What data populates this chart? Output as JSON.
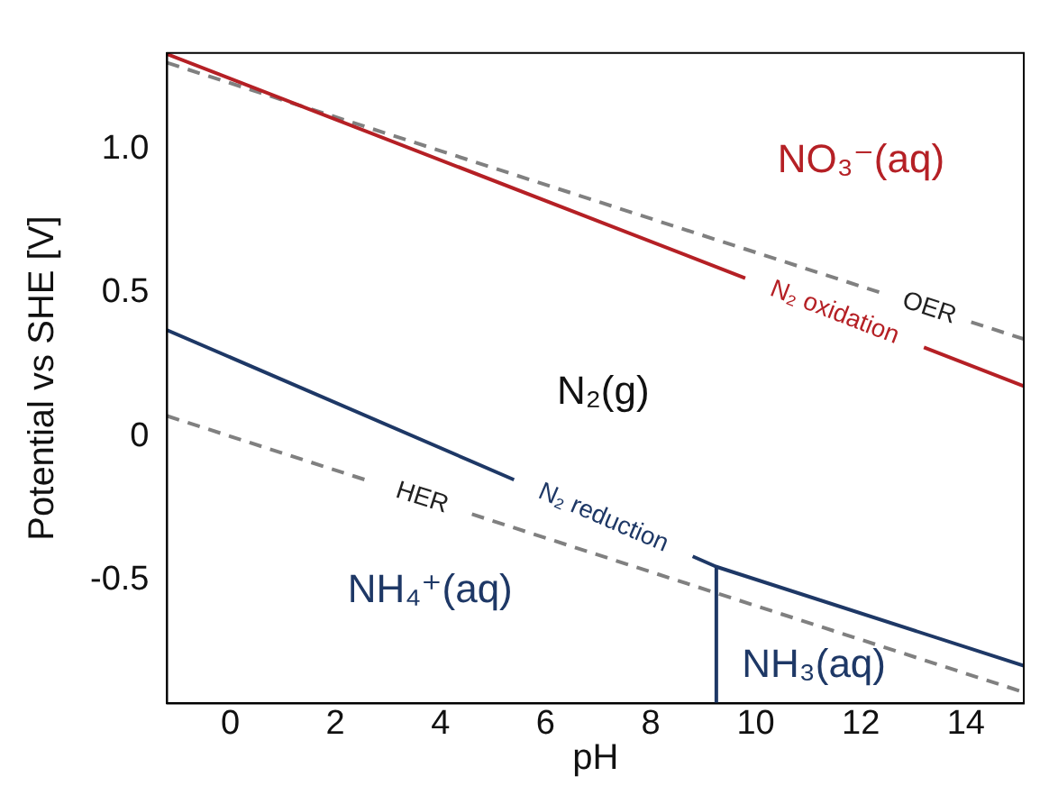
{
  "chart_data": {
    "type": "line",
    "xlabel": "pH",
    "ylabel": "Potential vs SHE [V]",
    "xlim": [
      -1.2,
      15.1
    ],
    "xticks": [
      0,
      2,
      4,
      6,
      8,
      10,
      12,
      14
    ],
    "ylim": [
      -0.93,
      1.335
    ],
    "yticks": [
      {
        "value": -0.5,
        "label": "-0.5"
      },
      0,
      {
        "value": 0.5,
        "label": "0.5"
      },
      {
        "value": 1,
        "label": "1.0"
      }
    ],
    "grid": false,
    "legend": false,
    "marker": "none",
    "series": [
      {
        "name": "N₂ oxidation",
        "color": "#b52025",
        "line_style": "solid",
        "x": [
          -1.2,
          9.8,
          11.5,
          13.2,
          15.1
        ],
        "values": [
          1.331,
          0.551,
          null,
          0.31,
          0.175
        ]
      },
      {
        "name": "OER",
        "color": "#808080",
        "line_style": "dashed",
        "x": [
          -1.2,
          12.5,
          13.3,
          14.1,
          15.1
        ],
        "values": [
          1.301,
          0.493,
          null,
          0.398,
          0.339
        ]
      },
      {
        "name": "N₂ reduction",
        "color": "#1e3866",
        "line_style": "solid",
        "x": [
          -1.2,
          5.4,
          7.1,
          8.8,
          9.25,
          15.1
        ],
        "values": [
          0.37,
          -0.151,
          null,
          -0.418,
          -0.454,
          -0.799
        ]
      },
      {
        "name": "HER",
        "color": "#808080",
        "line_style": "dashed",
        "x": [
          -1.2,
          2.7,
          3.65,
          4.6,
          15.1
        ],
        "values": [
          0.071,
          -0.159,
          null,
          -0.271,
          -0.891
        ]
      },
      {
        "color": "#1e3866",
        "line_style": "solid",
        "x": [
          9.25,
          9.25
        ],
        "values": [
          -0.454,
          -0.93
        ]
      }
    ],
    "annotations": [
      "NO₃⁻(aq)",
      "N₂(g)",
      "NH₄⁺(aq)",
      "NH₃(aq)"
    ]
  }
}
